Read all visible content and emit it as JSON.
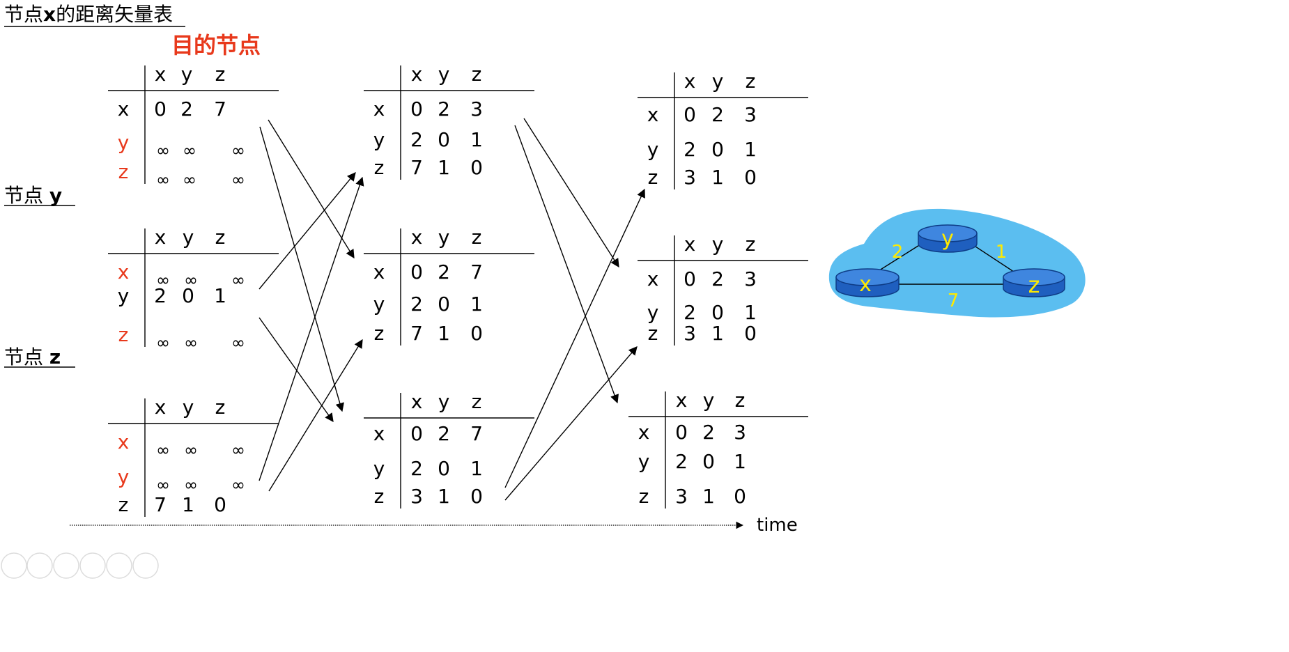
{
  "labels": {
    "node_x": "节点x的距离矢量表",
    "node_x_prefix": "节点",
    "node_x_bold": "x",
    "node_x_suffix": "的距离矢量表",
    "dest": "目的节点",
    "node_y_prefix": "节点 ",
    "node_y_bold": "y",
    "node_z_prefix": "节点 ",
    "node_z_bold": "z",
    "time": "time"
  },
  "columns": [
    "x",
    "y",
    "z"
  ],
  "tables": [
    {
      "name": "t-x-1",
      "rows": [
        {
          "label": "x",
          "values": [
            "0",
            "2",
            "7"
          ],
          "highlight": false
        },
        {
          "label": "y",
          "values": [
            "∞",
            "∞",
            "∞"
          ],
          "highlight": true
        },
        {
          "label": "z",
          "values": [
            "∞",
            "∞",
            "∞"
          ],
          "highlight": true
        }
      ]
    },
    {
      "name": "t-y-1",
      "rows": [
        {
          "label": "x",
          "values": [
            "∞",
            "∞",
            "∞"
          ],
          "highlight": true
        },
        {
          "label": "y",
          "values": [
            "2",
            "0",
            "1"
          ],
          "highlight": false
        },
        {
          "label": "z",
          "values": [
            "∞",
            "∞",
            "∞"
          ],
          "highlight": true
        }
      ]
    },
    {
      "name": "t-z-1",
      "rows": [
        {
          "label": "x",
          "values": [
            "∞",
            "∞",
            "∞"
          ],
          "highlight": true
        },
        {
          "label": "y",
          "values": [
            "∞",
            "∞",
            "∞"
          ],
          "highlight": true
        },
        {
          "label": "z",
          "values": [
            "7",
            "1",
            "0"
          ],
          "highlight": false
        }
      ]
    },
    {
      "name": "t-x-2",
      "rows": [
        {
          "label": "x",
          "values": [
            "0",
            "2",
            "3"
          ],
          "highlight": false
        },
        {
          "label": "y",
          "values": [
            "2",
            "0",
            "1"
          ],
          "highlight": false
        },
        {
          "label": "z",
          "values": [
            "7",
            "1",
            "0"
          ],
          "highlight": false
        }
      ]
    },
    {
      "name": "t-y-2",
      "rows": [
        {
          "label": "x",
          "values": [
            "0",
            "2",
            "7"
          ],
          "highlight": false
        },
        {
          "label": "y",
          "values": [
            "2",
            "0",
            "1"
          ],
          "highlight": false
        },
        {
          "label": "z",
          "values": [
            "7",
            "1",
            "0"
          ],
          "highlight": false
        }
      ]
    },
    {
      "name": "t-z-2",
      "rows": [
        {
          "label": "x",
          "values": [
            "0",
            "2",
            "7"
          ],
          "highlight": false
        },
        {
          "label": "y",
          "values": [
            "2",
            "0",
            "1"
          ],
          "highlight": false
        },
        {
          "label": "z",
          "values": [
            "3",
            "1",
            "0"
          ],
          "highlight": false
        }
      ]
    },
    {
      "name": "t-x-3",
      "rows": [
        {
          "label": "x",
          "values": [
            "0",
            "2",
            "3"
          ],
          "highlight": false
        },
        {
          "label": "y",
          "values": [
            "2",
            "0",
            "1"
          ],
          "highlight": false
        },
        {
          "label": "z",
          "values": [
            "3",
            "1",
            "0"
          ],
          "highlight": false
        }
      ]
    },
    {
      "name": "t-y-3",
      "rows": [
        {
          "label": "x",
          "values": [
            "0",
            "2",
            "3"
          ],
          "highlight": false
        },
        {
          "label": "y",
          "values": [
            "2",
            "0",
            "1"
          ],
          "highlight": false
        },
        {
          "label": "z",
          "values": [
            "3",
            "1",
            "0"
          ],
          "highlight": false
        }
      ]
    },
    {
      "name": "t-z-3",
      "rows": [
        {
          "label": "x",
          "values": [
            "0",
            "2",
            "3"
          ],
          "highlight": false
        },
        {
          "label": "y",
          "values": [
            "2",
            "0",
            "1"
          ],
          "highlight": false
        },
        {
          "label": "z",
          "values": [
            "3",
            "1",
            "0"
          ],
          "highlight": false
        }
      ]
    }
  ],
  "network": {
    "nodes": [
      "x",
      "y",
      "z"
    ],
    "edges": [
      {
        "from": "x",
        "to": "y",
        "cost": "2"
      },
      {
        "from": "y",
        "to": "z",
        "cost": "1"
      },
      {
        "from": "x",
        "to": "z",
        "cost": "7"
      }
    ]
  },
  "colors": {
    "highlight": "#e8391c",
    "text": "#000000",
    "cloud": "#5bbef0",
    "router": "#1f5fbf",
    "router_top": "#3f86df",
    "cost_label": "#ffea00"
  }
}
